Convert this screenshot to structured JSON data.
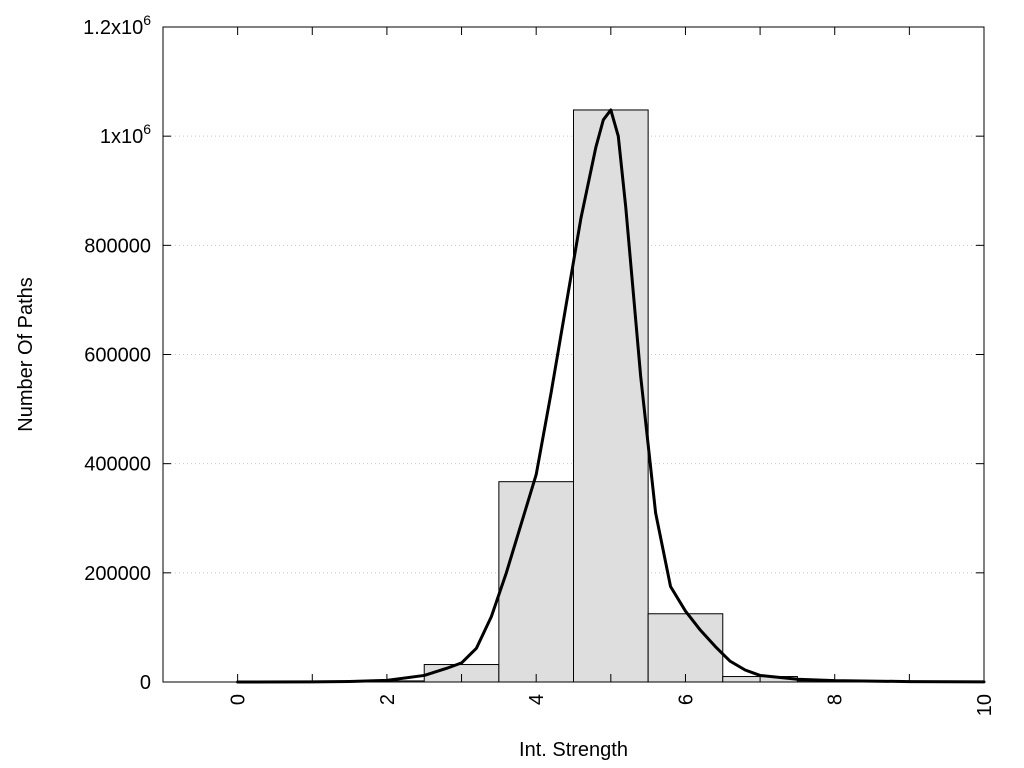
{
  "chart_data": {
    "type": "bar",
    "title": "",
    "xlabel": "Int. Strength",
    "ylabel": "Number Of Paths",
    "xlim": [
      -1,
      10
    ],
    "ylim": [
      0,
      1200000
    ],
    "grid": true,
    "bar_color": "#dedede",
    "curve_color": "#000000",
    "x_ticks": [
      {
        "value": 0,
        "label": "0"
      },
      {
        "value": 2,
        "label": "2"
      },
      {
        "value": 4,
        "label": "4"
      },
      {
        "value": 6,
        "label": "6"
      },
      {
        "value": 8,
        "label": "8"
      },
      {
        "value": 10,
        "label": "10"
      }
    ],
    "y_ticks": [
      {
        "value": 0,
        "label": "0",
        "sup": ""
      },
      {
        "value": 200000,
        "label": "200000",
        "sup": ""
      },
      {
        "value": 400000,
        "label": "400000",
        "sup": ""
      },
      {
        "value": 600000,
        "label": "600000",
        "sup": ""
      },
      {
        "value": 800000,
        "label": "800000",
        "sup": ""
      },
      {
        "value": 1000000,
        "label": "1x10",
        "sup": "6"
      },
      {
        "value": 1200000,
        "label": "1.2x10",
        "sup": "6"
      }
    ],
    "bars": [
      {
        "x": 0,
        "value": 0
      },
      {
        "x": 1,
        "value": 0
      },
      {
        "x": 2,
        "value": 2000
      },
      {
        "x": 3,
        "value": 32000
      },
      {
        "x": 4,
        "value": 367000
      },
      {
        "x": 5,
        "value": 1048000
      },
      {
        "x": 6,
        "value": 125000
      },
      {
        "x": 7,
        "value": 10000
      },
      {
        "x": 8,
        "value": 2000
      },
      {
        "x": 9,
        "value": 500
      }
    ],
    "bar_width": 1,
    "series": [
      {
        "type": "line",
        "x": [
          0,
          1,
          1.5,
          2,
          2.5,
          2.8,
          3,
          3.2,
          3.4,
          3.6,
          3.8,
          4,
          4.2,
          4.4,
          4.6,
          4.8,
          4.9,
          5,
          5.1,
          5.2,
          5.4,
          5.6,
          5.8,
          6,
          6.2,
          6.4,
          6.6,
          6.8,
          7,
          7.5,
          8,
          9,
          10
        ],
        "y": [
          0,
          300,
          1000,
          3000,
          12000,
          25000,
          35000,
          62000,
          120000,
          200000,
          290000,
          380000,
          530000,
          690000,
          850000,
          980000,
          1030000,
          1048000,
          1000000,
          870000,
          560000,
          310000,
          175000,
          130000,
          95000,
          65000,
          38000,
          22000,
          12000,
          5000,
          2500,
          800,
          200
        ]
      }
    ]
  }
}
